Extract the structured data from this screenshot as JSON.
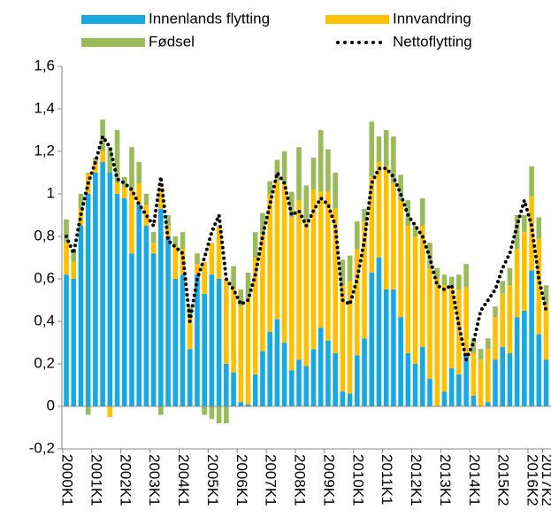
{
  "chart_data": {
    "type": "bar",
    "stacked": true,
    "categories": [
      "2000K1",
      null,
      null,
      null,
      "2001K1",
      null,
      null,
      null,
      "2002K1",
      null,
      null,
      null,
      "2003K1",
      null,
      null,
      null,
      "2004K1",
      null,
      null,
      null,
      "2005K1",
      null,
      null,
      null,
      "2006K1",
      null,
      null,
      null,
      "2007K1",
      null,
      null,
      null,
      "2008K1",
      null,
      null,
      null,
      "2009K1",
      null,
      null,
      null,
      "2010K1",
      null,
      null,
      null,
      "2011K1",
      null,
      null,
      null,
      "2012K1",
      null,
      null,
      null,
      "2013K1",
      null,
      null,
      null,
      "2014K1",
      null,
      null,
      null,
      "2015K2",
      null,
      null,
      null,
      "2016K2",
      null,
      "2017K2"
    ],
    "series": [
      {
        "name": "Innenlands flytting",
        "color": "#17a9e1",
        "values": [
          0.62,
          0.6,
          0.85,
          1.0,
          1.1,
          1.15,
          1.1,
          1.0,
          0.98,
          0.72,
          0.95,
          0.85,
          0.72,
          0.93,
          0.8,
          0.6,
          0.62,
          0.27,
          0.62,
          0.53,
          0.62,
          0.6,
          0.2,
          0.16,
          0.02,
          0.01,
          0.15,
          0.26,
          0.35,
          0.41,
          0.3,
          0.17,
          0.22,
          0.19,
          0.27,
          0.37,
          0.31,
          0.25,
          0.07,
          0.06,
          0.24,
          0.32,
          0.63,
          0.7,
          0.55,
          0.55,
          0.42,
          0.25,
          0.2,
          0.28,
          0.13,
          0.0,
          0.07,
          0.18,
          0.15,
          0.24,
          0.05,
          0.0,
          0.02,
          0.22,
          0.28,
          0.25,
          0.42,
          0.45,
          0.64,
          0.34,
          0.22
        ]
      },
      {
        "name": "Innvandring",
        "color": "#ffc000",
        "values": [
          0.15,
          0.08,
          0.08,
          0.1,
          0.05,
          0.05,
          -0.05,
          0.05,
          0.05,
          0.3,
          0.1,
          0.1,
          0.05,
          0.1,
          0.05,
          0.15,
          0.12,
          0.15,
          0.05,
          0.15,
          0.15,
          0.25,
          0.4,
          0.4,
          0.45,
          0.5,
          0.55,
          0.55,
          0.65,
          0.65,
          0.75,
          0.72,
          0.75,
          0.68,
          0.75,
          0.64,
          0.7,
          0.68,
          0.5,
          0.53,
          0.5,
          0.55,
          0.45,
          0.45,
          0.58,
          0.5,
          0.55,
          0.6,
          0.6,
          0.57,
          0.52,
          0.6,
          0.5,
          0.38,
          0.4,
          0.32,
          0.2,
          0.22,
          0.25,
          0.2,
          0.25,
          0.32,
          0.32,
          0.37,
          0.35,
          0.45,
          0.26
        ]
      },
      {
        "name": "Fødsel",
        "color": "#9bbb59",
        "values": [
          0.11,
          0.05,
          0.07,
          -0.04,
          0.02,
          0.15,
          0.12,
          0.25,
          0.05,
          0.2,
          0.1,
          0.05,
          0.05,
          -0.04,
          0.05,
          0.05,
          0.08,
          0.05,
          0.05,
          -0.04,
          -0.06,
          -0.08,
          -0.08,
          0.1,
          0.08,
          0.12,
          0.12,
          0.1,
          0.06,
          0.1,
          0.15,
          0.12,
          0.25,
          0.17,
          0.15,
          0.29,
          0.2,
          0.17,
          0.12,
          0.12,
          0.13,
          0.06,
          0.26,
          0.12,
          0.17,
          0.22,
          0.12,
          0.12,
          0.05,
          0.13,
          0.12,
          0.05,
          0.05,
          0.05,
          0.07,
          0.11,
          0.07,
          0.05,
          0.05,
          0.05,
          0.06,
          0.08,
          0.16,
          0.08,
          0.14,
          0.1,
          0.09
        ]
      },
      {
        "name": "Nettoflytting",
        "type": "line",
        "color": "#000000",
        "values": [
          0.8,
          0.72,
          0.9,
          1.05,
          1.15,
          1.27,
          1.22,
          1.07,
          1.05,
          1.02,
          0.95,
          0.9,
          0.85,
          1.08,
          0.78,
          0.75,
          0.72,
          0.4,
          0.6,
          0.7,
          0.82,
          0.9,
          0.6,
          0.55,
          0.48,
          0.5,
          0.62,
          0.8,
          0.95,
          1.1,
          1.05,
          0.9,
          0.92,
          0.85,
          0.92,
          0.98,
          0.95,
          0.85,
          0.5,
          0.48,
          0.6,
          0.78,
          1.05,
          1.12,
          1.12,
          1.08,
          1.0,
          0.9,
          0.85,
          0.8,
          0.7,
          0.57,
          0.55,
          0.57,
          0.38,
          0.22,
          0.3,
          0.45,
          0.5,
          0.55,
          0.65,
          0.72,
          0.85,
          0.97,
          0.85,
          0.6,
          0.45
        ]
      }
    ],
    "ylim": [
      -0.2,
      1.6
    ],
    "yticks": [
      {
        "value": -0.2,
        "label": "-0,2"
      },
      0,
      {
        "value": 0.2,
        "label": "0,2"
      },
      {
        "value": 0.4,
        "label": "0,4"
      },
      {
        "value": 0.6,
        "label": "0,6"
      },
      {
        "value": 0.8,
        "label": "0,8"
      },
      1,
      {
        "value": 1.2,
        "label": "1,2"
      },
      {
        "value": 1.4,
        "label": "1,4"
      },
      {
        "value": 1.6,
        "label": "1,6"
      }
    ],
    "legend": "top"
  }
}
